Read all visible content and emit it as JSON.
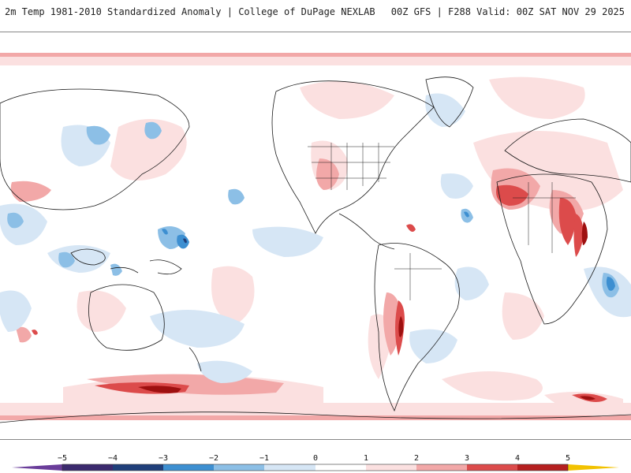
{
  "header": {
    "title": "2m Temp 1981-2010 Standardized Anomaly | College of DuPage NEXLAB",
    "run_info": "00Z GFS | F288 Valid: 00Z SAT NOV 29 2025"
  },
  "colorbar": {
    "labels": [
      "−5",
      "−4",
      "−3",
      "−2",
      "−1",
      "0",
      "1",
      "2",
      "3",
      "4",
      "5"
    ],
    "colors": {
      "n5": "#3b2a6e",
      "n4": "#1f3f7a",
      "n3": "#3d8fd1",
      "n2": "#8cbfe6",
      "n1": "#d6e6f5",
      "p0": "#ffffff",
      "p1": "#fbe0e0",
      "p2": "#f2a8a8",
      "p3": "#dc4b4b",
      "p4": "#b51f1f",
      "p5": "#7a0a0a",
      "end_low": "#6a3d9a",
      "end_high": "#f2c200"
    }
  },
  "map": {
    "background": "#ffffff",
    "coastline_color": "#1a1a1a",
    "warm_light": "#fbe0e0",
    "warm_mid": "#f2a8a8",
    "warm_strong": "#dc4b4b",
    "warm_extreme": "#9e1010",
    "cool_light": "#d6e6f5",
    "cool_mid": "#8cbfe6",
    "cool_strong": "#3d8fd1",
    "cool_extreme": "#1f3f7a"
  }
}
